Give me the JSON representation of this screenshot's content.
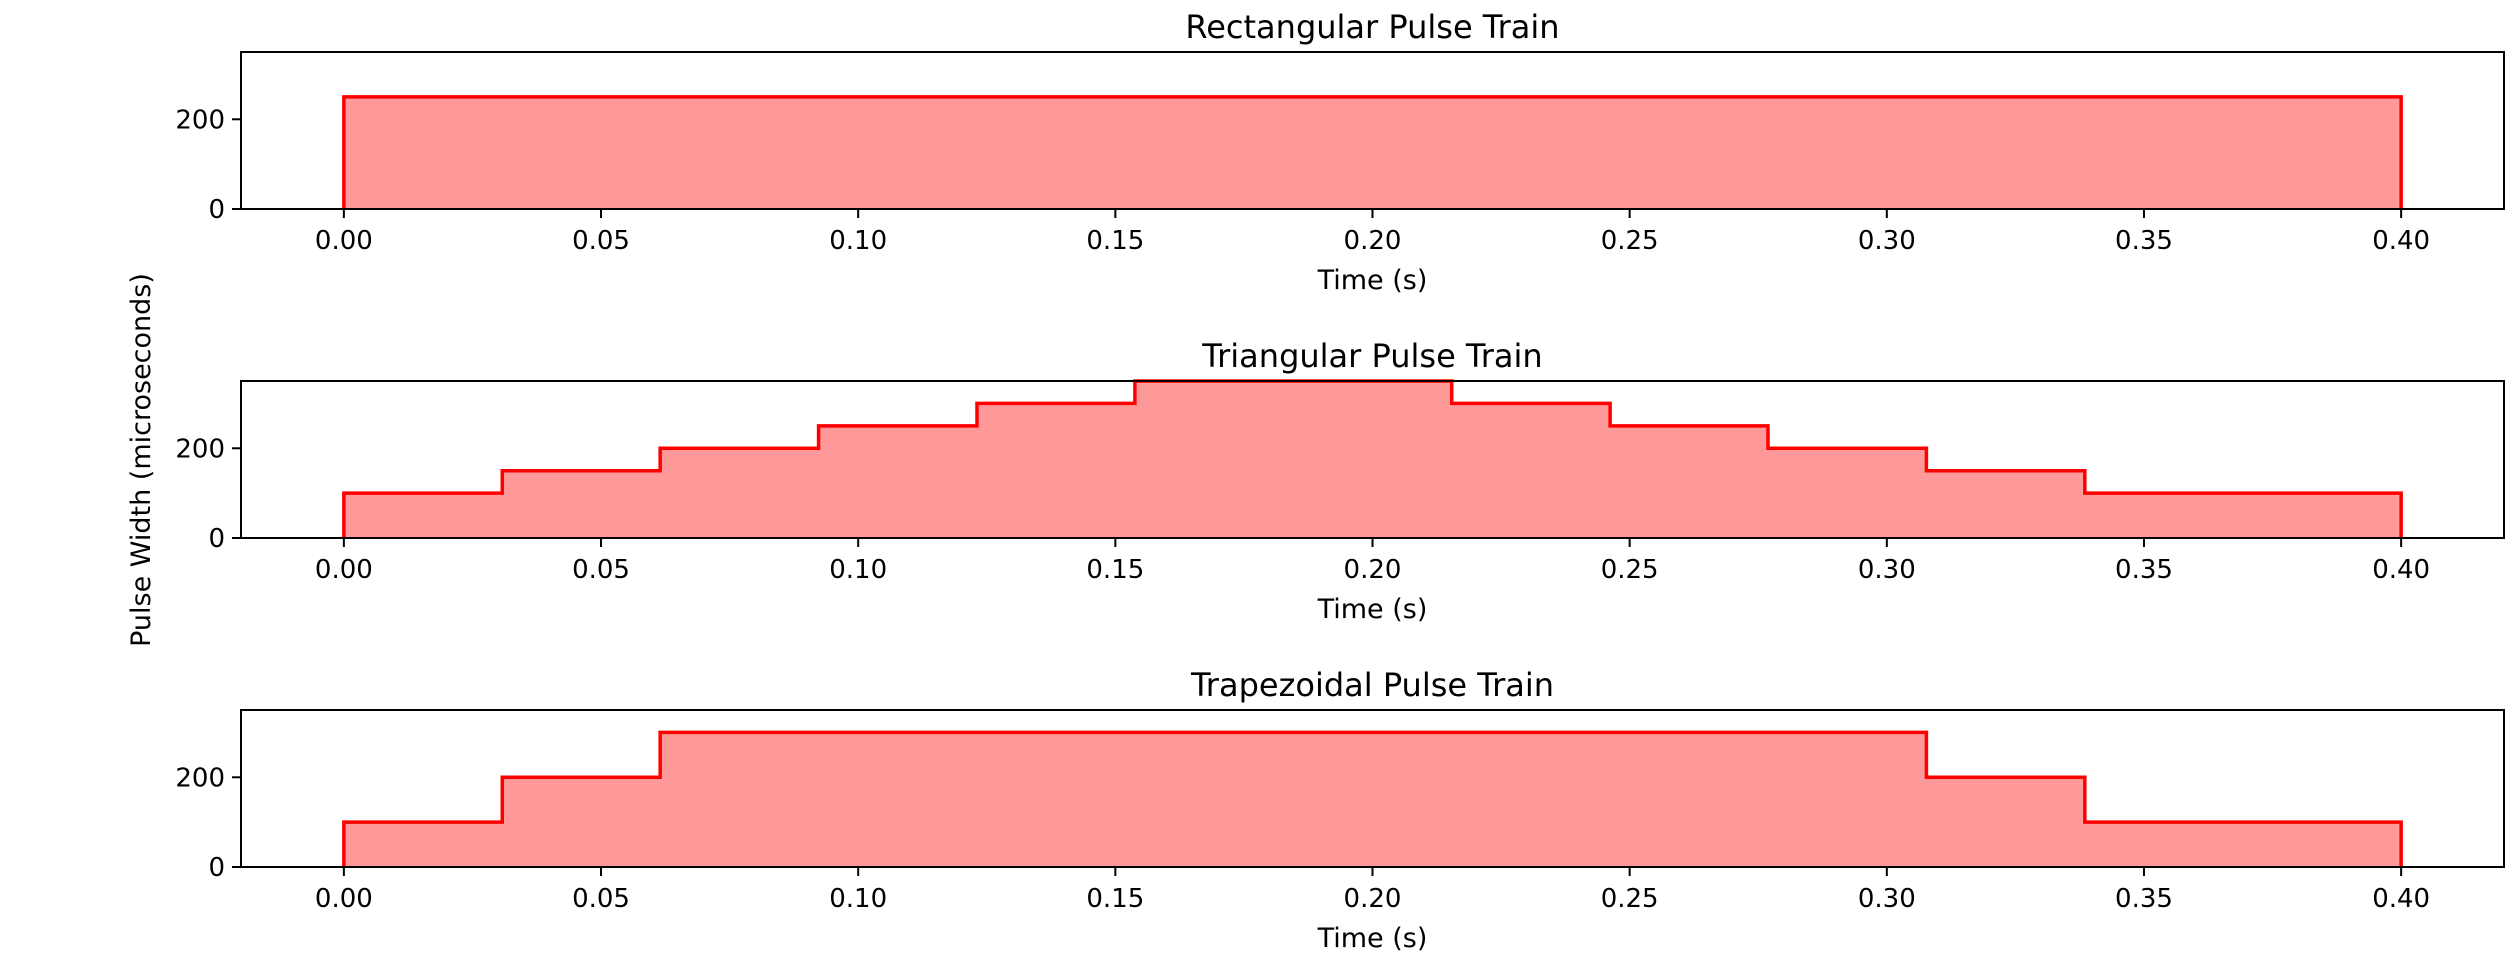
{
  "figure": {
    "ylabel": "Pulse Width (microseconds)",
    "colors": {
      "line": "#ff0000",
      "fill": "#ff9999"
    }
  },
  "chart_data": [
    {
      "type": "area",
      "title": "Rectangular Pulse Train",
      "xlabel": "Time (s)",
      "ylabel": "",
      "xlim": [
        -0.02,
        0.42
      ],
      "ylim": [
        0,
        350
      ],
      "xticks": [
        "0.00",
        "0.05",
        "0.10",
        "0.15",
        "0.20",
        "0.25",
        "0.30",
        "0.35",
        "0.40"
      ],
      "yticks": [
        "0",
        "200"
      ],
      "step": "post",
      "x": [
        0.0,
        0.4
      ],
      "y": [
        250,
        250
      ]
    },
    {
      "type": "area",
      "title": "Triangular Pulse Train",
      "xlabel": "Time (s)",
      "ylabel": "",
      "xlim": [
        -0.02,
        0.42
      ],
      "ylim": [
        0,
        350
      ],
      "xticks": [
        "0.00",
        "0.05",
        "0.10",
        "0.15",
        "0.20",
        "0.25",
        "0.30",
        "0.35",
        "0.40"
      ],
      "yticks": [
        "0",
        "200"
      ],
      "step": "post",
      "x": [
        0.0,
        0.0308,
        0.0615,
        0.0923,
        0.1231,
        0.1538,
        0.2154,
        0.2462,
        0.2769,
        0.3077,
        0.3385,
        0.4
      ],
      "y": [
        100,
        150,
        200,
        250,
        300,
        350,
        300,
        250,
        200,
        150,
        100,
        100
      ]
    },
    {
      "type": "area",
      "title": "Trapezoidal Pulse Train",
      "xlabel": "Time (s)",
      "ylabel": "",
      "xlim": [
        -0.02,
        0.42
      ],
      "ylim": [
        0,
        350
      ],
      "xticks": [
        "0.00",
        "0.05",
        "0.10",
        "0.15",
        "0.20",
        "0.25",
        "0.30",
        "0.35",
        "0.40"
      ],
      "yticks": [
        "0",
        "200"
      ],
      "step": "post",
      "x": [
        0.0,
        0.0308,
        0.0615,
        0.3077,
        0.3385,
        0.4
      ],
      "y": [
        100,
        200,
        300,
        200,
        100,
        100
      ]
    }
  ]
}
